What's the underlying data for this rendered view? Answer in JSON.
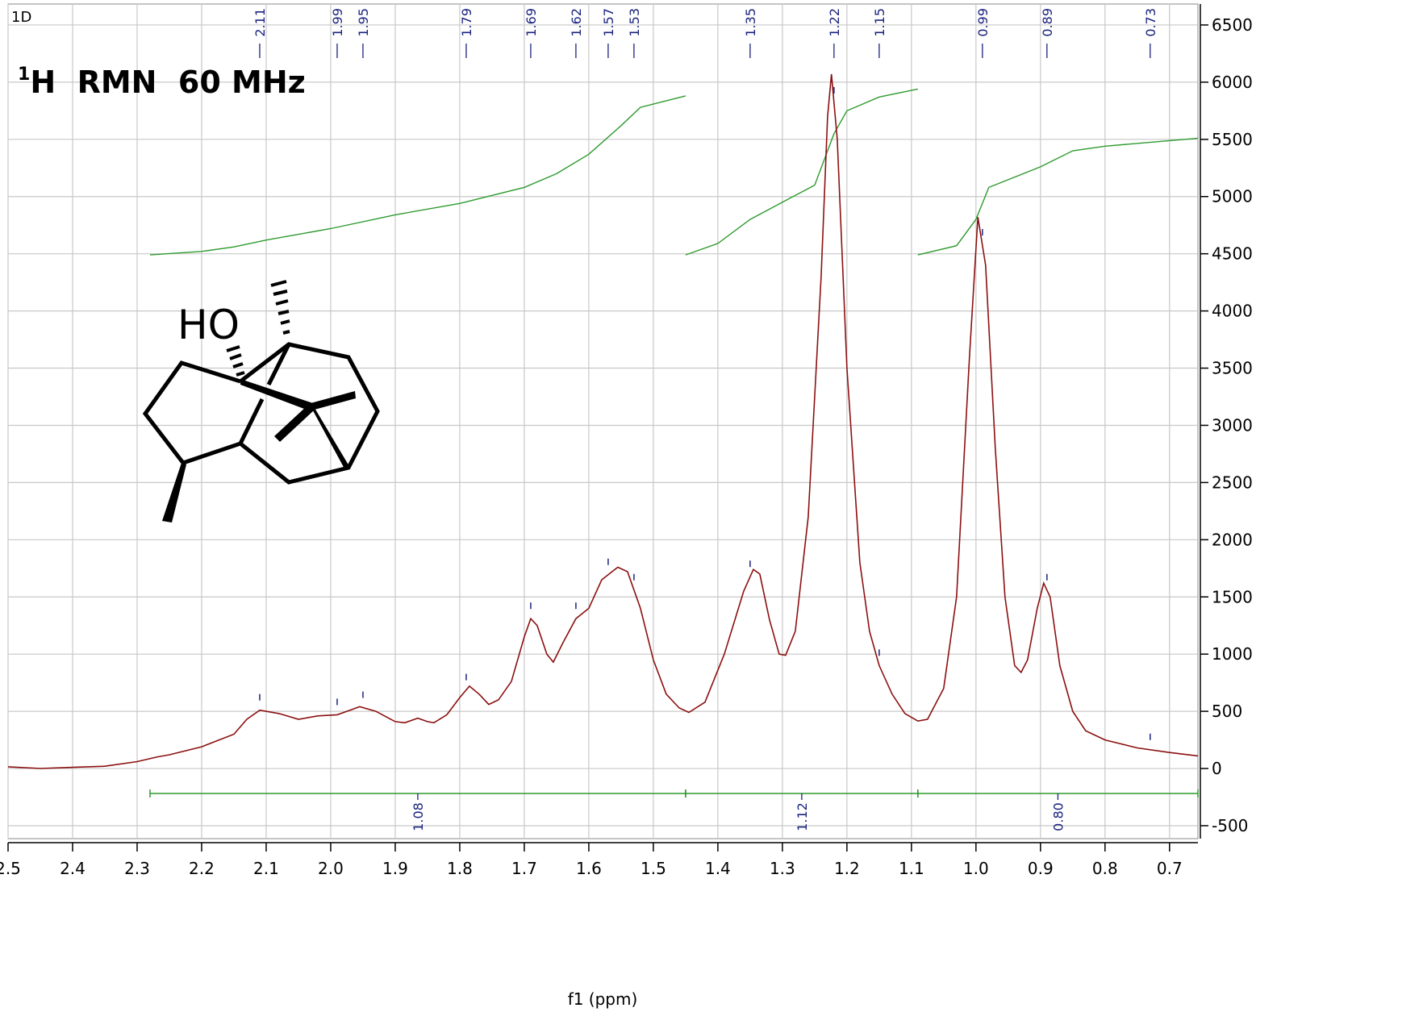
{
  "chart_data": {
    "type": "line",
    "corner_label": "1D",
    "title": {
      "isotope": "1",
      "text": "H  RMN  60 MHz"
    },
    "structure_label": "HO",
    "xlabel": "f1 (ppm)",
    "xlim": [
      2.5,
      0.656
    ],
    "xticks": [
      2.5,
      2.4,
      2.3,
      2.2,
      2.1,
      {
        "value": 2,
        "label": "2.0"
      },
      1.9,
      1.8,
      1.7,
      1.6,
      1.5,
      1.4,
      1.3,
      1.2,
      1.1,
      {
        "value": 1,
        "label": "1.0"
      },
      0.9,
      0.8,
      0.7
    ],
    "ylim": [
      -613,
      6683
    ],
    "yticks": [
      -500,
      0,
      500,
      1000,
      1500,
      2000,
      2500,
      3000,
      3500,
      4000,
      4500,
      5000,
      5500,
      6000,
      6500
    ],
    "grid": true,
    "series": [
      {
        "color": "#8b1010",
        "x": [
          2.5,
          2.45,
          2.4,
          2.35,
          2.3,
          2.27,
          2.25,
          2.2,
          2.15,
          2.13,
          2.11,
          2.08,
          2.05,
          2.02,
          1.99,
          1.97,
          1.955,
          1.93,
          1.9,
          1.885,
          1.865,
          1.85,
          1.84,
          1.82,
          1.8,
          1.785,
          1.77,
          1.755,
          1.74,
          1.72,
          1.7,
          1.69,
          1.68,
          1.665,
          1.655,
          1.64,
          1.62,
          1.6,
          1.58,
          1.555,
          1.54,
          1.52,
          1.5,
          1.48,
          1.46,
          1.445,
          1.42,
          1.39,
          1.36,
          1.345,
          1.335,
          1.32,
          1.305,
          1.295,
          1.28,
          1.26,
          1.24,
          1.23,
          1.224,
          1.215,
          1.2,
          1.18,
          1.165,
          1.15,
          1.13,
          1.11,
          1.09,
          1.075,
          1.05,
          1.03,
          1.01,
          0.997,
          0.985,
          0.97,
          0.955,
          0.94,
          0.93,
          0.92,
          0.905,
          0.895,
          0.885,
          0.87,
          0.85,
          0.83,
          0.8,
          0.75,
          0.7,
          0.656
        ],
        "values": [
          15,
          0,
          10,
          20,
          60,
          100,
          120,
          190,
          300,
          430,
          510,
          480,
          430,
          460,
          470,
          510,
          540,
          500,
          410,
          400,
          440,
          410,
          400,
          470,
          620,
          720,
          650,
          560,
          600,
          760,
          1150,
          1310,
          1250,
          1000,
          930,
          1100,
          1310,
          1400,
          1650,
          1760,
          1720,
          1400,
          950,
          650,
          530,
          490,
          580,
          1000,
          1550,
          1740,
          1700,
          1300,
          1000,
          990,
          1200,
          2200,
          4300,
          5700,
          6070,
          5500,
          3500,
          1800,
          1200,
          900,
          650,
          480,
          415,
          430,
          700,
          1500,
          3600,
          4820,
          4400,
          2800,
          1500,
          900,
          840,
          950,
          1400,
          1620,
          1500,
          900,
          500,
          330,
          250,
          180,
          140,
          110
        ]
      }
    ],
    "integral_curves": [
      {
        "color": "#2e9a2e",
        "x": [
          2.28,
          2.2,
          2.15,
          2.1,
          2.0,
          1.9,
          1.8,
          1.7,
          1.65,
          1.6,
          1.55,
          1.52,
          1.45
        ],
        "values": [
          4490,
          4520,
          4560,
          4620,
          4720,
          4840,
          4940,
          5080,
          5200,
          5370,
          5620,
          5780,
          5880
        ]
      },
      {
        "color": "#2e9a2e",
        "x": [
          1.45,
          1.4,
          1.35,
          1.3,
          1.25,
          1.22,
          1.2,
          1.15,
          1.09
        ],
        "values": [
          4490,
          4590,
          4800,
          4950,
          5100,
          5550,
          5750,
          5870,
          5940
        ]
      },
      {
        "color": "#2e9a2e",
        "x": [
          1.09,
          1.03,
          1.0,
          0.98,
          0.9,
          0.85,
          0.8,
          0.656
        ],
        "values": [
          4490,
          4570,
          4800,
          5080,
          5260,
          5400,
          5440,
          5510
        ]
      }
    ],
    "integrals": [
      {
        "from": 2.28,
        "to": 1.45,
        "value": 1.08
      },
      {
        "from": 1.45,
        "to": 1.09,
        "value": 1.12
      },
      {
        "from": 1.09,
        "to": 0.656,
        "value": 0.8,
        "value_label": "0.80"
      }
    ],
    "peaks": [
      2.11,
      1.99,
      1.95,
      1.79,
      1.69,
      1.62,
      1.57,
      1.53,
      1.35,
      1.22,
      1.15,
      0.99,
      0.89,
      0.73
    ]
  }
}
